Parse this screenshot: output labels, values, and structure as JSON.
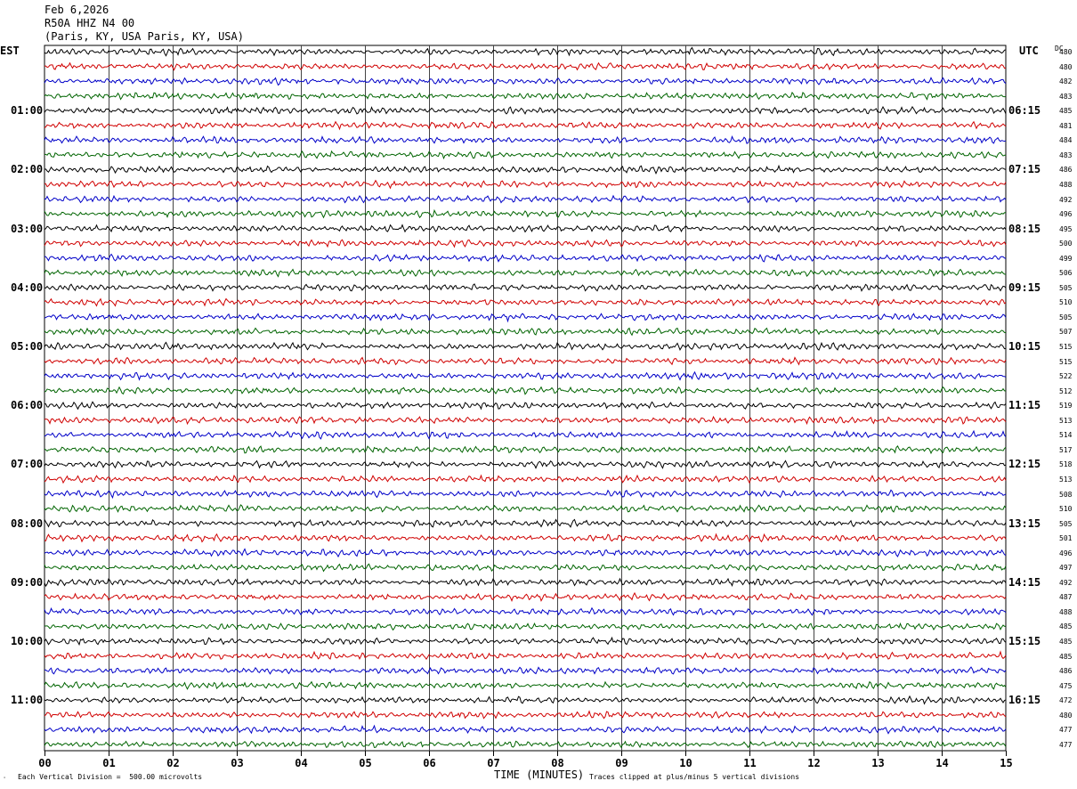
{
  "header": {
    "date": "Feb 6,2026",
    "station": "R50A HHZ N4 00",
    "location": "(Paris, KY, USA Paris, KY, USA)"
  },
  "left_axis_label": "EST",
  "right_axis_label": "UTC",
  "dc_label": "DC",
  "footer": {
    "scale_note": "Each Vertical Division =  500.00 microvolts",
    "xlabel": "TIME (MINUTES)",
    "clip_note": "Traces clipped at plus/minus 5 vertical divisions"
  },
  "colors": {
    "trace_cycle": [
      "#000000",
      "#d00000",
      "#0000c8",
      "#006400"
    ],
    "grid": "#000000",
    "background": "#ffffff"
  },
  "chart_data": {
    "type": "line",
    "title": "R50A HHZ N4 00",
    "xlabel": "TIME (MINUTES)",
    "xlim": [
      0,
      15
    ],
    "x_ticks": [
      "00",
      "01",
      "02",
      "03",
      "04",
      "05",
      "06",
      "07",
      "08",
      "09",
      "10",
      "11",
      "12",
      "13",
      "14",
      "15"
    ],
    "est_hour_labels": [
      "01:00",
      "02:00",
      "03:00",
      "04:00",
      "05:00",
      "06:00",
      "07:00",
      "08:00",
      "09:00",
      "10:00",
      "11:00"
    ],
    "utc_hour_labels": [
      "06:15",
      "07:15",
      "08:15",
      "09:15",
      "10:15",
      "11:15",
      "12:15",
      "13:15",
      "14:15",
      "15:15",
      "16:15"
    ],
    "dc_offsets": [
      480,
      480,
      482,
      483,
      485,
      481,
      484,
      483,
      486,
      488,
      492,
      496,
      495,
      500,
      499,
      506,
      505,
      510,
      505,
      507,
      515,
      515,
      522,
      512,
      519,
      513,
      514,
      517,
      518,
      513,
      508,
      510,
      505,
      501,
      496,
      497,
      492,
      487,
      488,
      485,
      485,
      485,
      486,
      475,
      472,
      480,
      477,
      477
    ],
    "traces_per_hour": 4,
    "trace_count": 48
  }
}
